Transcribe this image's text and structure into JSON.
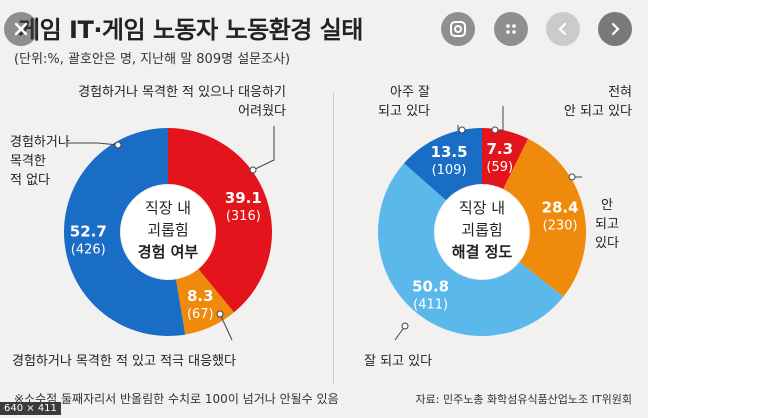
{
  "header": {
    "title": "게임 IT·게임 노동자 노동환경 실태",
    "subtitle": "(단위:%, 괄호안은 명, 지난해 말 809명 설문조사)"
  },
  "left_chart": {
    "center_lines": [
      "직장 내",
      "괴롭힘",
      "경험 여부"
    ],
    "labels": {
      "top": [
        "경험하거나 목격한 적 있으나 대응하기",
        "어려웠다"
      ],
      "left": [
        "경험하거나",
        "목격한",
        "적 없다"
      ],
      "bottom": "경험하거나 목격한 적 있고 적극 대응했다"
    }
  },
  "right_chart": {
    "center_lines": [
      "직장 내",
      "괴롭힘",
      "해결 정도"
    ],
    "labels": {
      "top_left": [
        "아주 잘",
        "되고 있다"
      ],
      "top_right": [
        "전혀",
        "안 되고 있다"
      ],
      "right": [
        "안",
        "되고",
        "있다"
      ],
      "bottom": "잘 되고 있다"
    }
  },
  "chart_data": [
    {
      "type": "pie",
      "title": "직장 내 괴롭힘 경험 여부",
      "slices": [
        {
          "label": "경험하거나 목격한 적 있으나 대응하기 어려웠다",
          "value": 39.1,
          "count": "(316)",
          "color": "#e3141c"
        },
        {
          "label": "경험하거나 목격한 적 있고 적극 대응했다",
          "value": 8.3,
          "count": "(67)",
          "color": "#f08a0c"
        },
        {
          "label": "경험하거나 목격한 적 없다",
          "value": 52.7,
          "count": "(426)",
          "color": "#1a6dc4"
        }
      ]
    },
    {
      "type": "pie",
      "title": "직장 내 괴롭힘 해결 정도",
      "slices": [
        {
          "label": "전혀 안 되고 있다",
          "value": 7.3,
          "count": "(59)",
          "color": "#e3141c"
        },
        {
          "label": "안 되고 있다",
          "value": 28.4,
          "count": "(230)",
          "color": "#f08a0c"
        },
        {
          "label": "잘 되고 있다",
          "value": 50.8,
          "count": "(411)",
          "color": "#5bb8ea"
        },
        {
          "label": "아주 잘 되고 있다",
          "value": 13.5,
          "count": "(109)",
          "color": "#1a6dc4"
        }
      ]
    }
  ],
  "footer": {
    "note": "※소수점 둘째자리서 반올림한 수치로 100이 넘거나 안될수 있음",
    "source": "자료: 민주노총 화학섬유식품산업노조 IT위원회"
  },
  "viewer": {
    "size_label": "640 × 411",
    "icons": [
      "close-icon",
      "lens-icon",
      "more-icon",
      "prev-icon",
      "next-icon"
    ]
  }
}
